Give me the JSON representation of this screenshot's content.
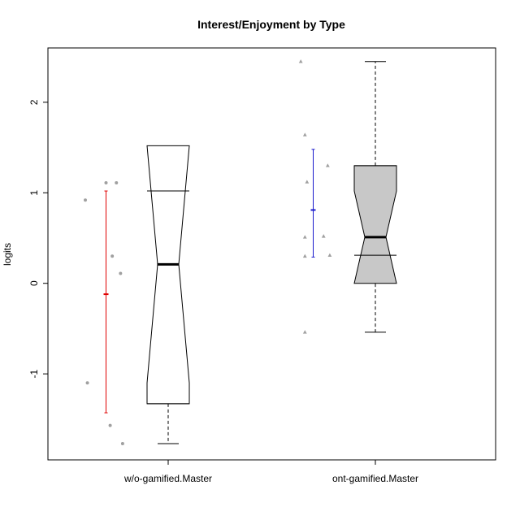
{
  "chart_data": {
    "type": "box",
    "title": "Interest/Enjoyment by Type",
    "xlabel": "",
    "ylabel": "logits",
    "ylim": [
      -1.95,
      2.6
    ],
    "yticks": [
      -1,
      0,
      1,
      2
    ],
    "ytick_labels": [
      "-1",
      "0",
      "1",
      "2"
    ],
    "grid": false,
    "legend": "none",
    "categories": [
      "w/o-gamified.Master",
      "ont-gamified.Master"
    ],
    "boxes": [
      {
        "label": "w/o-gamified.Master",
        "notched": true,
        "whisker_low": -1.77,
        "q1": -1.33,
        "median": 0.21,
        "q3": 1.02,
        "whisker_high": 1.11,
        "notch_low": -1.1,
        "notch_high": 1.52,
        "fill": "#ffffff"
      },
      {
        "label": "ont-gamified.Master",
        "notched": true,
        "whisker_low": -0.54,
        "q1": 0.31,
        "median": 0.51,
        "q3": 1.3,
        "whisker_high": 2.45,
        "notch_low": 0.0,
        "notch_high": 1.02,
        "fill": "#c8c8c8"
      }
    ],
    "mean_ci": [
      {
        "category": "w/o-gamified.Master",
        "mean": -0.12,
        "low": -1.43,
        "high": 1.02,
        "color": "#e00000"
      },
      {
        "category": "ont-gamified.Master",
        "mean": 0.81,
        "low": 0.29,
        "high": 1.48,
        "color": "#1a1acc"
      }
    ],
    "points": [
      {
        "category": "w/o-gamified.Master",
        "marker": "circle",
        "color": "#a0a0a0",
        "values": [
          0.92,
          1.11,
          1.11,
          0.3,
          0.11,
          -1.1,
          -1.57,
          -1.77
        ],
        "offsets": [
          -0.4,
          -0.3,
          -0.25,
          -0.27,
          -0.23,
          -0.39,
          -0.28,
          -0.22
        ]
      },
      {
        "category": "ont-gamified.Master",
        "marker": "triangle",
        "color": "#a0a0a0",
        "values": [
          2.45,
          1.64,
          1.3,
          1.12,
          0.52,
          0.51,
          0.31,
          0.3,
          -0.54
        ],
        "offsets": [
          -0.36,
          -0.34,
          -0.23,
          -0.33,
          -0.25,
          -0.34,
          -0.22,
          -0.34,
          -0.34
        ]
      }
    ]
  }
}
